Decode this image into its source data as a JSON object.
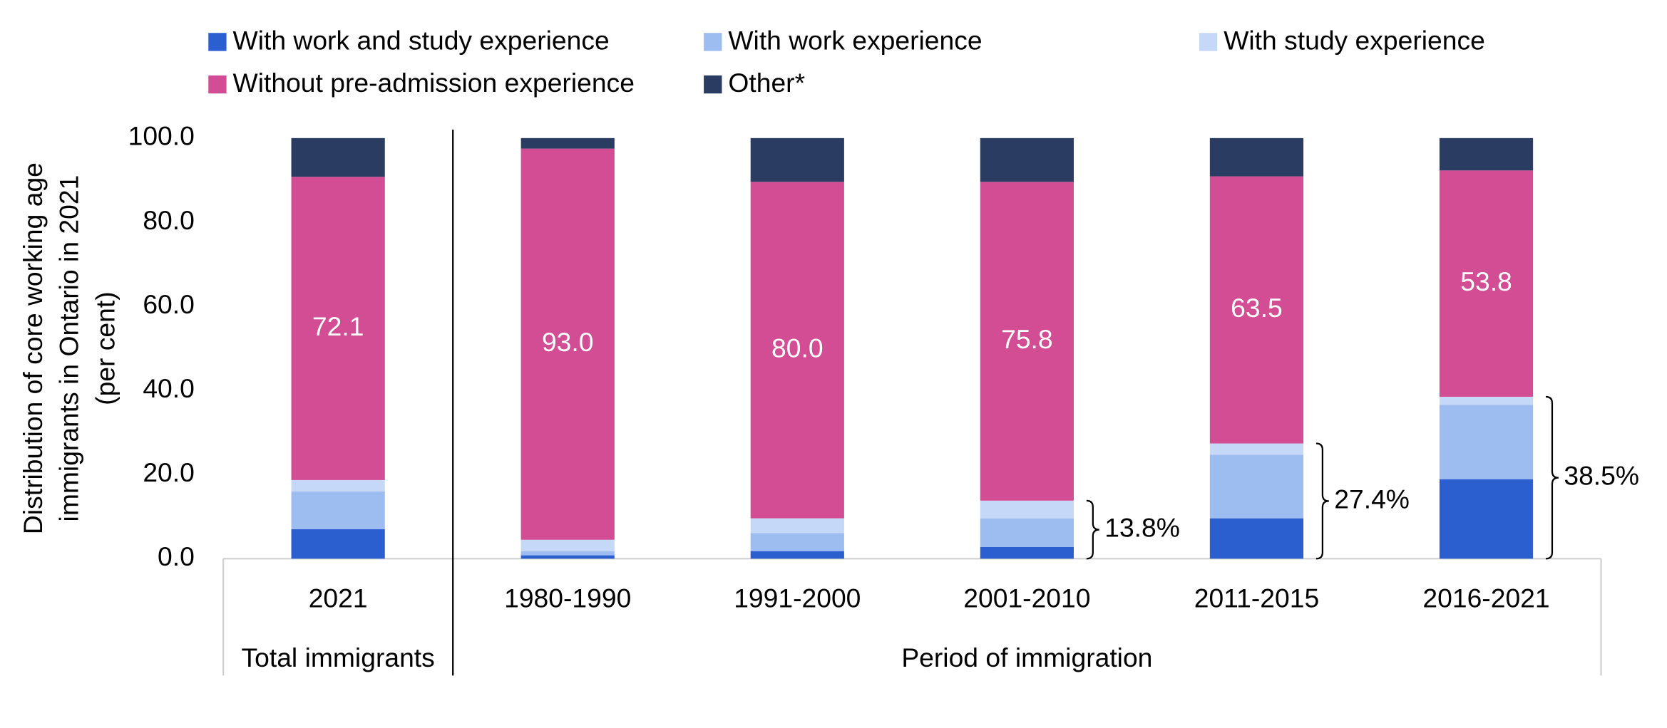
{
  "chart_data": {
    "type": "stacked_bar",
    "y_axis_title": [
      "Distribution of core working age",
      "immigrants in Ontario in 2021",
      "(per cent)"
    ],
    "categories": [
      "2021",
      "1980-1990",
      "1991-2000",
      "2001-2010",
      "2011-2015",
      "2016-2021"
    ],
    "groups": [
      {
        "label": "Total immigrants",
        "categories": [
          "2021"
        ]
      },
      {
        "label": "Period of immigration",
        "categories": [
          "1980-1990",
          "1991-2000",
          "2001-2010",
          "2011-2015",
          "2016-2021"
        ]
      }
    ],
    "series": [
      {
        "name": "With work and study experience",
        "color": "#2b5fcf",
        "values": [
          7.0,
          0.8,
          1.8,
          2.8,
          9.6,
          18.9
        ]
      },
      {
        "name": "With work experience",
        "color": "#9dbcf0",
        "values": [
          9.0,
          1.0,
          4.3,
          6.8,
          15.1,
          17.7
        ]
      },
      {
        "name": "With study experience",
        "color": "#c6d8f7",
        "values": [
          2.7,
          2.7,
          3.5,
          4.2,
          2.7,
          1.9
        ]
      },
      {
        "name": "Without pre-admission experience",
        "color": "#d24d93",
        "values": [
          72.1,
          93.0,
          80.0,
          75.8,
          63.5,
          53.8
        ],
        "value_labels": [
          "72.1",
          "93.0",
          "80.0",
          "75.8",
          "63.5",
          "53.8"
        ]
      },
      {
        "name": "Other*",
        "color": "#2b3c63",
        "values": [
          9.2,
          2.5,
          10.4,
          10.4,
          9.1,
          7.7
        ]
      }
    ],
    "annotations": [
      {
        "category": "2001-2010",
        "text": "13.8%"
      },
      {
        "category": "2011-2015",
        "text": "27.4%"
      },
      {
        "category": "2016-2021",
        "text": "38.5%"
      }
    ],
    "ylim": [
      0,
      100
    ],
    "yticks": [
      {
        "value": 0,
        "label": "0.0"
      },
      {
        "value": 20,
        "label": "20.0"
      },
      {
        "value": 40,
        "label": "40.0"
      },
      {
        "value": 60,
        "label": "60.0"
      },
      {
        "value": 80,
        "label": "80.0"
      },
      {
        "value": 100,
        "label": "100.0"
      }
    ],
    "grid": false,
    "legend": "top"
  }
}
